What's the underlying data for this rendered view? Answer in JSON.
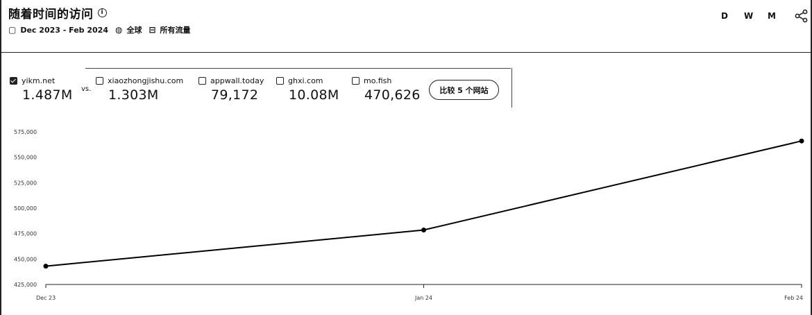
{
  "header": {
    "title": "随着时间的访问",
    "date_range": "Dec 2023 - Feb 2024",
    "region": "全球",
    "traffic_type": "所有流量",
    "granularity": [
      "D",
      "W",
      "M"
    ]
  },
  "sites": [
    {
      "name": "yikm.net",
      "value": "1.487M",
      "checked": true
    },
    {
      "name": "xiaozhongjishu.com",
      "value": "1.303M",
      "checked": false
    },
    {
      "name": "appwall.today",
      "value": "79,172",
      "checked": false
    },
    {
      "name": "ghxi.com",
      "value": "10.08M",
      "checked": false
    },
    {
      "name": "mo.fish",
      "value": "470,626",
      "checked": false
    }
  ],
  "vs_label": "vs.",
  "compare_button": "比较 5 个网站",
  "chart_data": {
    "type": "line",
    "categories": [
      "Dec 23",
      "Jan 24",
      "Feb 24"
    ],
    "series": [
      {
        "values": [
          443000,
          478500,
          566000
        ]
      }
    ],
    "y_tick_labels": [
      "575,000",
      "550,000",
      "525,000",
      "500,000",
      "475,000",
      "450,000",
      "425,000"
    ],
    "ylim": [
      425000,
      575000
    ],
    "line_color": "#000000"
  }
}
